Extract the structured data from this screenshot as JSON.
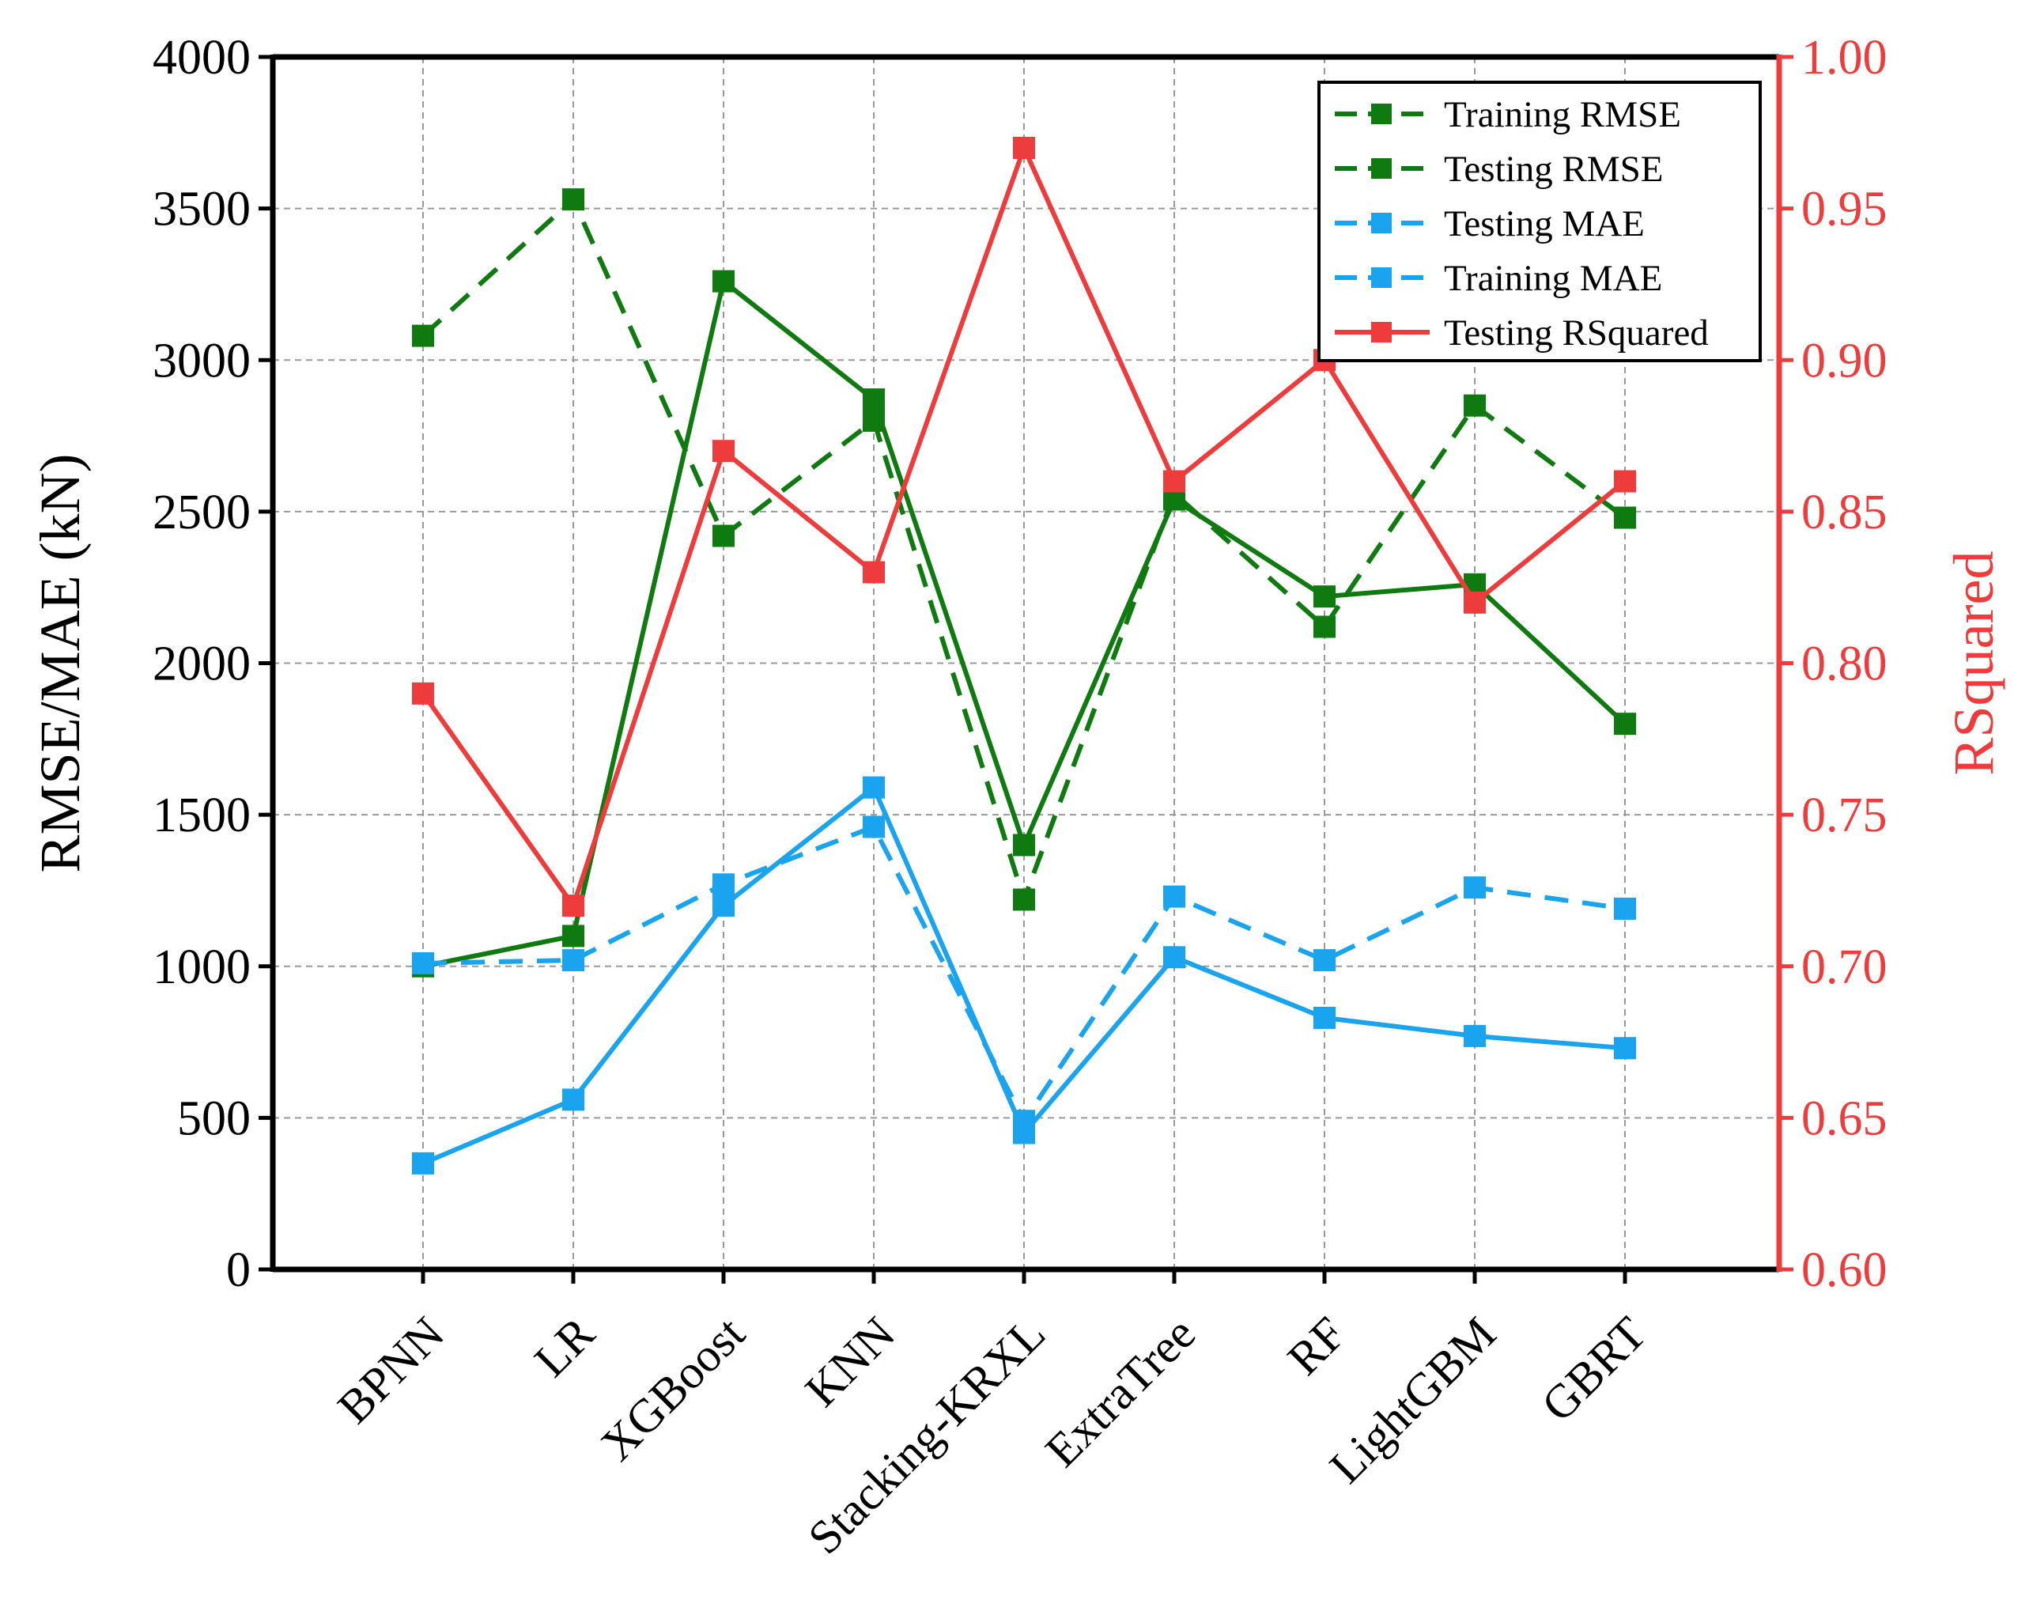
{
  "chart_data": {
    "type": "line",
    "categories": [
      "BPNN",
      "LR",
      "XGBoost",
      "KNN",
      "Stacking-KRXL",
      "ExtraTree",
      "RF",
      "LightGBM",
      "GBRT"
    ],
    "y_left": {
      "label": "RMSE/MAE (kN)",
      "range": [
        0,
        4000
      ],
      "ticks": [
        0,
        500,
        1000,
        1500,
        2000,
        2500,
        3000,
        3500,
        4000
      ]
    },
    "y_right": {
      "label": "RSquared",
      "range": [
        0.6,
        1.0
      ],
      "ticks": [
        "0.60",
        "0.65",
        "0.70",
        "0.75",
        "0.80",
        "0.85",
        "0.90",
        "0.95",
        "1.00"
      ]
    },
    "grid": true,
    "legend_position": "top-right",
    "series": [
      {
        "name": "Training RMSE",
        "axis": "left",
        "style": "solid",
        "color": "#0f7a0f",
        "values": [
          1000,
          1100,
          3260,
          2870,
          1400,
          2540,
          2220,
          2260,
          1800
        ]
      },
      {
        "name": "Testing RMSE",
        "axis": "left",
        "style": "dashed",
        "color": "#0f7a0f",
        "values": [
          3080,
          3530,
          2420,
          2800,
          1220,
          2560,
          2120,
          2850,
          2480
        ]
      },
      {
        "name": "Testing MAE",
        "axis": "left",
        "style": "dashed",
        "color": "#1aa3ee",
        "values": [
          1010,
          1020,
          1270,
          1460,
          490,
          1230,
          1020,
          1260,
          1190
        ]
      },
      {
        "name": "Training MAE",
        "axis": "left",
        "style": "solid",
        "color": "#1aa3ee",
        "values": [
          350,
          560,
          1200,
          1590,
          450,
          1030,
          830,
          770,
          730
        ]
      },
      {
        "name": "Testing RSquared",
        "axis": "right",
        "style": "solid",
        "color": "#ee3b3b",
        "values": [
          0.79,
          0.72,
          0.87,
          0.83,
          0.97,
          0.86,
          0.9,
          0.82,
          0.86
        ]
      }
    ],
    "legend_styles": [
      {
        "name": "Training RMSE",
        "color": "#0f7a0f",
        "style": "dashed"
      },
      {
        "name": "Testing RMSE",
        "color": "#0f7a0f",
        "style": "dashed"
      },
      {
        "name": "Testing MAE",
        "color": "#1aa3ee",
        "style": "dashed"
      },
      {
        "name": "Training MAE",
        "color": "#1aa3ee",
        "style": "dashed"
      },
      {
        "name": "Testing RSquared",
        "color": "#ee3b3b",
        "style": "solid"
      }
    ],
    "colors": {
      "axis": "#000000",
      "right_axis": "#ee3b3b",
      "grid": "#9a9a9a"
    }
  }
}
